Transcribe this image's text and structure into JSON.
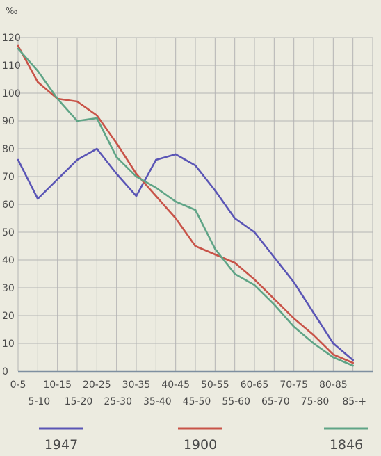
{
  "chart_data": {
    "type": "line",
    "unit_label": "‰",
    "ylim": [
      0,
      120
    ],
    "y_ticks": [
      "0",
      "10",
      "20",
      "30",
      "40",
      "50",
      "60",
      "70",
      "80",
      "90",
      "100",
      "110",
      "120"
    ],
    "x_ticks_upper": [
      "0-5",
      "10-15",
      "20-25",
      "30-35",
      "40-45",
      "50-55",
      "60-65",
      "70-75",
      "80-85"
    ],
    "x_ticks_lower": [
      "5-10",
      "15-20",
      "25-30",
      "35-40",
      "45-50",
      "55-60",
      "65-70",
      "75-80",
      "85-+"
    ],
    "categories": [
      "0-5",
      "5-10",
      "10-15",
      "15-20",
      "20-25",
      "25-30",
      "30-35",
      "35-40",
      "40-45",
      "45-50",
      "50-55",
      "55-60",
      "60-65",
      "65-70",
      "70-75",
      "75-80",
      "80-85",
      "85-+"
    ],
    "grid": true,
    "series": [
      {
        "name": "1947",
        "color": "#5a55b5",
        "values": [
          76,
          62,
          69,
          76,
          80,
          71,
          63,
          76,
          78,
          74,
          65,
          55,
          50,
          41,
          32,
          21,
          10,
          4
        ]
      },
      {
        "name": "1900",
        "color": "#c85348",
        "values": [
          117,
          104,
          98,
          97,
          92,
          82,
          71,
          63,
          55,
          45,
          42,
          39,
          33,
          26,
          19,
          13,
          6,
          3
        ]
      },
      {
        "name": "1846",
        "color": "#5fa486",
        "values": [
          116,
          108,
          98,
          90,
          91,
          77,
          70,
          66,
          61,
          58,
          44,
          35,
          31,
          24,
          16,
          10,
          5,
          2
        ]
      }
    ]
  }
}
